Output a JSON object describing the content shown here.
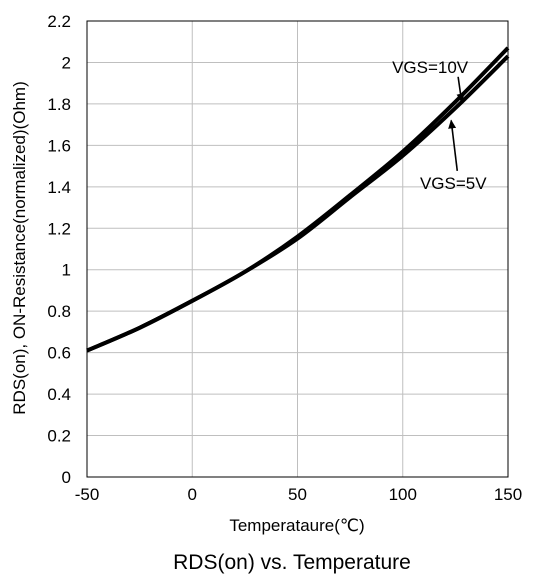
{
  "chart_data": {
    "type": "line",
    "title": "RDS(on) vs. Temperature",
    "xlabel": "Temperataure(℃)",
    "ylabel": "RDS(on), ON-Resistance(normalized)(Ohm)",
    "xlim": [
      -50,
      150
    ],
    "ylim": [
      0,
      2.2
    ],
    "xticks": [
      -50,
      0,
      50,
      100,
      150
    ],
    "yticks": [
      0,
      0.2,
      0.4,
      0.6,
      0.8,
      1,
      1.2,
      1.4,
      1.6,
      1.8,
      2,
      2.2
    ],
    "xtick_labels": [
      "-50",
      "0",
      "50",
      "100",
      "150"
    ],
    "ytick_labels": [
      "0",
      "0.2",
      "0.4",
      "0.6",
      "0.8",
      "1",
      "1.2",
      "1.4",
      "1.6",
      "1.8",
      "2",
      "2.2"
    ],
    "grid": true,
    "series": [
      {
        "name": "VGS=10V",
        "x": [
          -50,
          -25,
          0,
          25,
          50,
          75,
          100,
          125,
          150
        ],
        "y": [
          0.61,
          0.72,
          0.85,
          0.99,
          1.16,
          1.36,
          1.57,
          1.81,
          2.07
        ]
      },
      {
        "name": "VGS=5V",
        "x": [
          -50,
          -25,
          0,
          25,
          50,
          75,
          100,
          125,
          150
        ],
        "y": [
          0.61,
          0.72,
          0.85,
          0.99,
          1.15,
          1.35,
          1.55,
          1.78,
          2.03
        ]
      }
    ],
    "annotations": [
      {
        "text": "VGS=10V",
        "target_series": 0,
        "point_x": 128,
        "point_y": 1.81,
        "label_x": 113,
        "label_y": 1.95
      },
      {
        "text": "VGS=5V",
        "target_series": 1,
        "point_x": 123,
        "point_y": 1.72,
        "label_x": 124,
        "label_y": 1.39
      }
    ],
    "colors": {
      "line": "#000000",
      "grid": "#bfbfbf",
      "axis": "#000000"
    }
  }
}
